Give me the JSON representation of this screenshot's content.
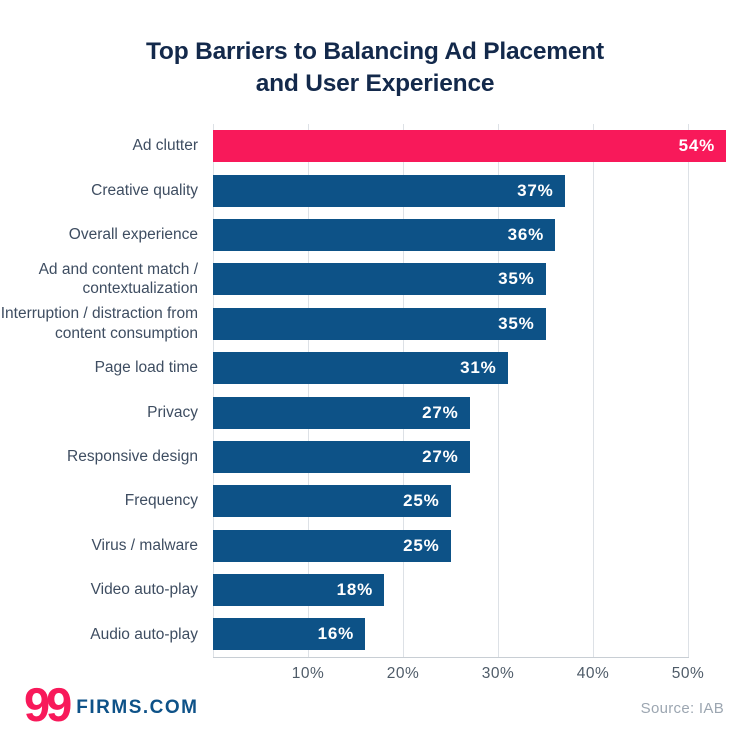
{
  "title": "Top Barriers to Balancing Ad Placement and User Experience",
  "title_lines": [
    "Top Barriers to Balancing Ad Placement",
    "and User Experience"
  ],
  "chart_data": {
    "type": "bar",
    "orientation": "horizontal",
    "title": "Top Barriers to Balancing Ad Placement and User Experience",
    "categories": [
      "Ad clutter",
      "Creative quality",
      "Overall experience",
      "Ad and content match / contextualization",
      "Interruption / distraction from content consumption",
      "Page load time",
      "Privacy",
      "Responsive design",
      "Frequency",
      "Virus / malware",
      "Video auto-play",
      "Audio auto-play"
    ],
    "values": [
      54,
      37,
      36,
      35,
      35,
      31,
      27,
      27,
      25,
      25,
      18,
      16
    ],
    "value_suffix": "%",
    "highlight_index": 0,
    "xlabel": "",
    "ylabel": "",
    "xlim": [
      0,
      50
    ],
    "x_ticks": [
      "10%",
      "20%",
      "30%",
      "40%",
      "50%"
    ],
    "x_tick_values": [
      10,
      20,
      30,
      40,
      50
    ],
    "grid": true,
    "legend": false,
    "colors": {
      "bar": "#0D5287",
      "highlight": "#F8195A"
    }
  },
  "footer": {
    "logo_number": "99",
    "logo_text": "FIRMS.COM",
    "source": "Source: IAB"
  }
}
